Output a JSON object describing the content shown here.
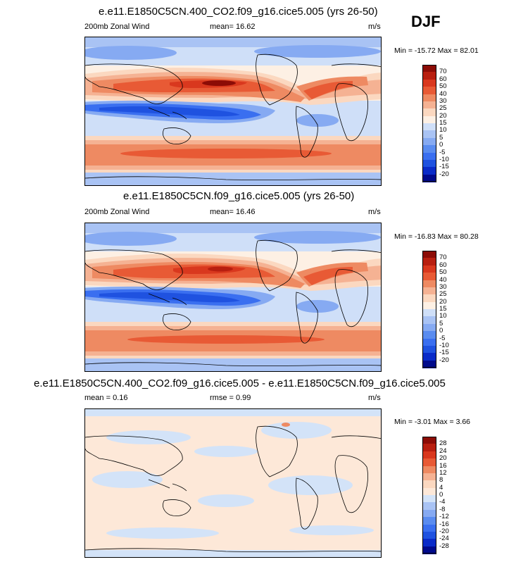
{
  "season": "DJF",
  "colors": {
    "abs_scale": [
      "#000a8c",
      "#0a2bc8",
      "#1f52e0",
      "#3a6ff0",
      "#5a8cf0",
      "#86aaf2",
      "#a9c3f4",
      "#cfdff8",
      "#fdf0e4",
      "#fbd8c0",
      "#f5b293",
      "#ee8a62",
      "#e85a35",
      "#d9381e",
      "#b81f10",
      "#8c0c06"
    ],
    "diff_scale": [
      "#000a8c",
      "#0a2bc8",
      "#1f52e0",
      "#3a6ff0",
      "#5a8cf0",
      "#86aaf2",
      "#a9c3f4",
      "#d3e3f8",
      "#fde8d8",
      "#fbd8c0",
      "#f5b293",
      "#ee8a62",
      "#e85a35",
      "#d9381e",
      "#b81f10",
      "#8c0c06"
    ]
  },
  "chart_data": [
    {
      "type": "heatmap",
      "title": "e.e11.E1850C5CN.400_CO2.f09_g16.cice5.005 (yrs 26-50)",
      "variable": "200mb Zonal Wind",
      "mean_label": "mean=",
      "mean": "16.62",
      "units": "m/s",
      "min_label": "Min =",
      "min": "-15.72",
      "max_label": "Max =",
      "max": "82.01",
      "levels": [
        "70",
        "60",
        "50",
        "40",
        "30",
        "25",
        "20",
        "15",
        "10",
        "5",
        "0",
        "-5",
        "-10",
        "-15",
        "-20"
      ]
    },
    {
      "type": "heatmap",
      "title": "e.e11.E1850C5CN.f09_g16.cice5.005 (yrs 26-50)",
      "variable": "200mb Zonal Wind",
      "mean_label": "mean=",
      "mean": "16.46",
      "units": "m/s",
      "min_label": "Min =",
      "min": "-16.83",
      "max_label": "Max =",
      "max": "80.28",
      "levels": [
        "70",
        "60",
        "50",
        "40",
        "30",
        "25",
        "20",
        "15",
        "10",
        "5",
        "0",
        "-5",
        "-10",
        "-15",
        "-20"
      ]
    },
    {
      "type": "heatmap",
      "title": "e.e11.E1850C5CN.400_CO2.f09_g16.cice5.005 - e.e11.E1850C5CN.f09_g16.cice5.005",
      "mean_label": "mean =",
      "mean": "0.16",
      "rmse_label": "rmse =",
      "rmse": "0.99",
      "units": "m/s",
      "min_label": "Min =",
      "min": "-3.01",
      "max_label": "Max =",
      "max": "3.66",
      "levels": [
        "28",
        "24",
        "20",
        "16",
        "12",
        "8",
        "4",
        "0",
        "-4",
        "-8",
        "-12",
        "-16",
        "-20",
        "-24",
        "-28"
      ]
    }
  ]
}
